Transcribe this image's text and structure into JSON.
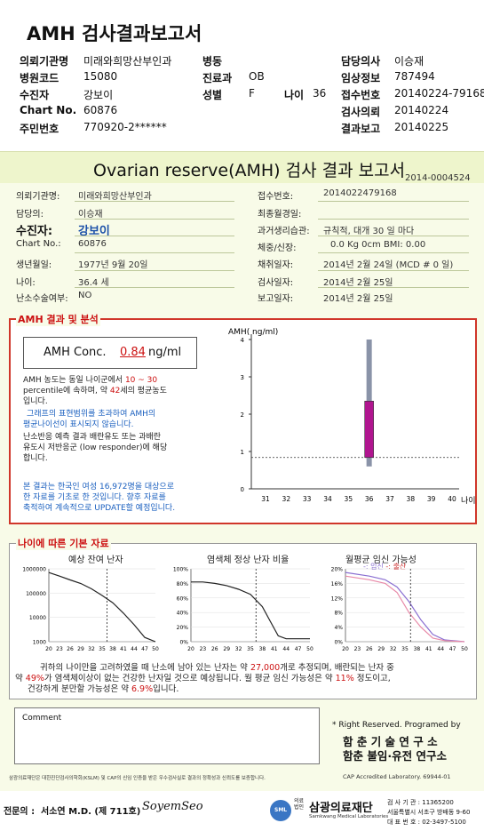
{
  "top": {
    "title": "AMH 검사결과보고서",
    "fields": [
      {
        "label": "의뢰기관명",
        "value": "미래와희망산부인과"
      },
      {
        "label": "병원코드",
        "value": "15080"
      },
      {
        "label": "수진자",
        "value": "강보이"
      },
      {
        "label": "Chart No.",
        "value": "60876"
      },
      {
        "label": "주민번호",
        "value": "770920-2******"
      }
    ],
    "mid_fields": [
      {
        "label": "병동",
        "value": ""
      },
      {
        "label": "진료과",
        "value": "OB"
      },
      {
        "label": "성별",
        "value": "F"
      }
    ],
    "age_label": "나이",
    "age_value": "36",
    "right_fields": [
      {
        "label": "담당의사",
        "value": "이승재"
      },
      {
        "label": "임상정보",
        "value": "787494"
      },
      {
        "label": "접수번호",
        "value": "20140224-79168"
      },
      {
        "label": "검사의뢰",
        "value": "20140224"
      },
      {
        "label": "결과보고",
        "value": "20140225"
      }
    ]
  },
  "report": {
    "title": "Ovarian reserve(AMH) 검사 결과 보고서",
    "number": "2014-0004524",
    "left": [
      {
        "label": "의뢰기관명:",
        "value": "미래와희망산부인과"
      },
      {
        "label": "담당의:",
        "value": "이승재"
      },
      {
        "label": "수진자:",
        "value": "강보이"
      },
      {
        "label": "Chart No.:",
        "value": "60876"
      },
      {
        "label": "생년월일:",
        "value": "1977년 9월 20일"
      },
      {
        "label": "나이:",
        "value": "36.4 세"
      },
      {
        "label": "난소수술여부:",
        "value": "NO"
      }
    ],
    "right": [
      {
        "label": "접수번호:",
        "value": "2014022479168"
      },
      {
        "label": "최종월경일:",
        "value": ""
      },
      {
        "label": "과거생리습관:",
        "value": "규칙적, 대개  30 일 마다"
      },
      {
        "label": "체중/신장:",
        "value": "0.0 Kg        0cm   BMI:   0.00"
      },
      {
        "label": "채취일자:",
        "value": "2014년 2월 24일   (MCD # 0 일)"
      },
      {
        "label": "검사일자:",
        "value": "2014년 2월 25일"
      },
      {
        "label": "보고일자:",
        "value": "2014년 2월 25일"
      }
    ]
  },
  "amh": {
    "section_label": "AMH 결과 및 분석",
    "conc_label": "AMH Conc.",
    "conc_value": "0.84",
    "conc_unit": "ng/ml",
    "desc1_a": "AMH 농도는 동일 나이군에서",
    "desc1_range": "10 ~  30",
    "desc1_b": "percentile에 속하며, 약",
    "desc1_age": "42",
    "desc1_c": "세의 평균농도",
    "desc1_d": "입니다.",
    "desc2_a": "그래프의 표현범위를 초과하여 AMH의",
    "desc2_b": "평균나이선이 표시되지 않습니다.",
    "desc3_a": "난소반응 예측 결과 배란유도 또는 과배란",
    "desc3_b": "유도시 저반응군 (low responder)에 해당",
    "desc3_c": "합니다.",
    "note_a": "본 결과는 한국인 여성 16,972명을 대상으로",
    "note_b": "한 자료를 기초로 한 것입니다. 향후 자료를",
    "note_c": "축적하여 계속적으로 UPDATE할 예정입니다."
  },
  "chart_data": [
    {
      "type": "bar",
      "title": "",
      "ylabel": "AMH( ng/ml)",
      "xlabel": "나이",
      "x_ticks": [
        "31",
        "32",
        "33",
        "34",
        "35",
        "36",
        "37",
        "38",
        "39",
        "40"
      ],
      "y_ticks": [
        "0",
        "1",
        "2",
        "3",
        "4"
      ],
      "ylim": [
        0,
        4
      ],
      "range_bar": {
        "x": "36",
        "low": 0.6,
        "high": 4.0,
        "color": "#8a93a8"
      },
      "iqr_bar": {
        "x": "36",
        "low": 0.84,
        "high": 2.35,
        "color": "#b0158f"
      },
      "reference_line": 0.84
    },
    {
      "type": "line",
      "title": "예상 잔여 난자",
      "x_ticks": [
        "20",
        "23",
        "26",
        "29",
        "32",
        "35",
        "38",
        "41",
        "44",
        "47",
        "50"
      ],
      "y_ticks": [
        "1000000",
        "100000",
        "10000",
        "1000"
      ],
      "log_scale": true,
      "points": [
        [
          20,
          700000
        ],
        [
          23,
          500000
        ],
        [
          26,
          350000
        ],
        [
          29,
          250000
        ],
        [
          32,
          150000
        ],
        [
          35,
          80000
        ],
        [
          38,
          40000
        ],
        [
          41,
          15000
        ],
        [
          44,
          5000
        ],
        [
          47,
          1500
        ],
        [
          50,
          1000
        ]
      ],
      "marker_age": 36.4
    },
    {
      "type": "line",
      "title": "염색체 정상 난자 비율",
      "x_ticks": [
        "20",
        "23",
        "26",
        "29",
        "32",
        "35",
        "38",
        "41",
        "44",
        "47",
        "50"
      ],
      "y_ticks": [
        "100%",
        "80%",
        "60%",
        "40%",
        "20%",
        "0%"
      ],
      "points": [
        [
          20,
          82
        ],
        [
          23,
          82
        ],
        [
          26,
          80
        ],
        [
          29,
          77
        ],
        [
          32,
          72
        ],
        [
          35,
          65
        ],
        [
          38,
          48
        ],
        [
          40,
          28
        ],
        [
          42,
          8
        ],
        [
          44,
          4
        ],
        [
          47,
          4
        ],
        [
          50,
          4
        ]
      ],
      "marker_age": 36.4
    },
    {
      "type": "line",
      "title": "월평균 임신 가능성",
      "legend": [
        "임신",
        "출산"
      ],
      "x_ticks": [
        "20",
        "23",
        "26",
        "29",
        "32",
        "35",
        "38",
        "41",
        "44",
        "47",
        "50"
      ],
      "y_ticks": [
        "20%",
        "16%",
        "12%",
        "8%",
        "4%",
        "0%"
      ],
      "series": [
        {
          "name": "임신",
          "color": "#8a6fd1",
          "points": [
            [
              20,
              19
            ],
            [
              26,
              18
            ],
            [
              30,
              17
            ],
            [
              33,
              15
            ],
            [
              36,
              11
            ],
            [
              39,
              6
            ],
            [
              42,
              2
            ],
            [
              45,
              0.5
            ],
            [
              50,
              0
            ]
          ]
        },
        {
          "name": "출산",
          "color": "#e88aa8",
          "points": [
            [
              20,
              18
            ],
            [
              26,
              17
            ],
            [
              30,
              16
            ],
            [
              33,
              13.5
            ],
            [
              36,
              8
            ],
            [
              39,
              4
            ],
            [
              42,
              1
            ],
            [
              45,
              0.3
            ],
            [
              50,
              0
            ]
          ]
        }
      ],
      "marker_age": 36.4
    }
  ],
  "age": {
    "section_label": "나이에 따른 기본 자료",
    "summary_a1": "귀하의 나이만을 고려하였을 때 난소에 남아 있는 난자는 약",
    "summary_eggs": "27,000",
    "summary_a2": "개로 추정되며, 배란되는 난자 중",
    "summary_b1": "약",
    "summary_pct1": "49%",
    "summary_b2": "가 염색체이상이 없는 건강한 난자일 것으로 예상됩니다. 월 평균 임신 가능성은 약",
    "summary_pct2": "11%",
    "summary_b3": "정도이고,",
    "summary_c1": "건강하게 분만할 가능성은 약",
    "summary_pct3": "6.9%",
    "summary_c2": "입니다."
  },
  "comment": {
    "label": "Comment",
    "rights": "* Right Reserved. Programed by",
    "org1": "함 춘 기 술 연 구 소",
    "org2": "함춘 불임·유전 연구소"
  },
  "footer": {
    "cert": "삼광의료재단은 대한진단검사의학회(KSLM) 및 CAP의 신임 인증을 받은 우수검사실로 결과의 정확성과 신뢰도를 보증합니다.",
    "cap": "CAP Accredited Laboratory. 69944-01",
    "doctor_label": "전문의 :",
    "doctor": "서소연 M.D. (제 711호)",
    "signature": "SoyemSeo",
    "foundation": "삼광의료재단",
    "foundation_en": "Samkwang Medical Laboratories",
    "foundation_prefix": "의료법인",
    "seal": "SML",
    "reg_no": "검 사 기 관 : 11365200",
    "address": "서울특별시 서초구 방배동 9-60",
    "phone": "대 표 번 호 : 02-3497-5100"
  }
}
